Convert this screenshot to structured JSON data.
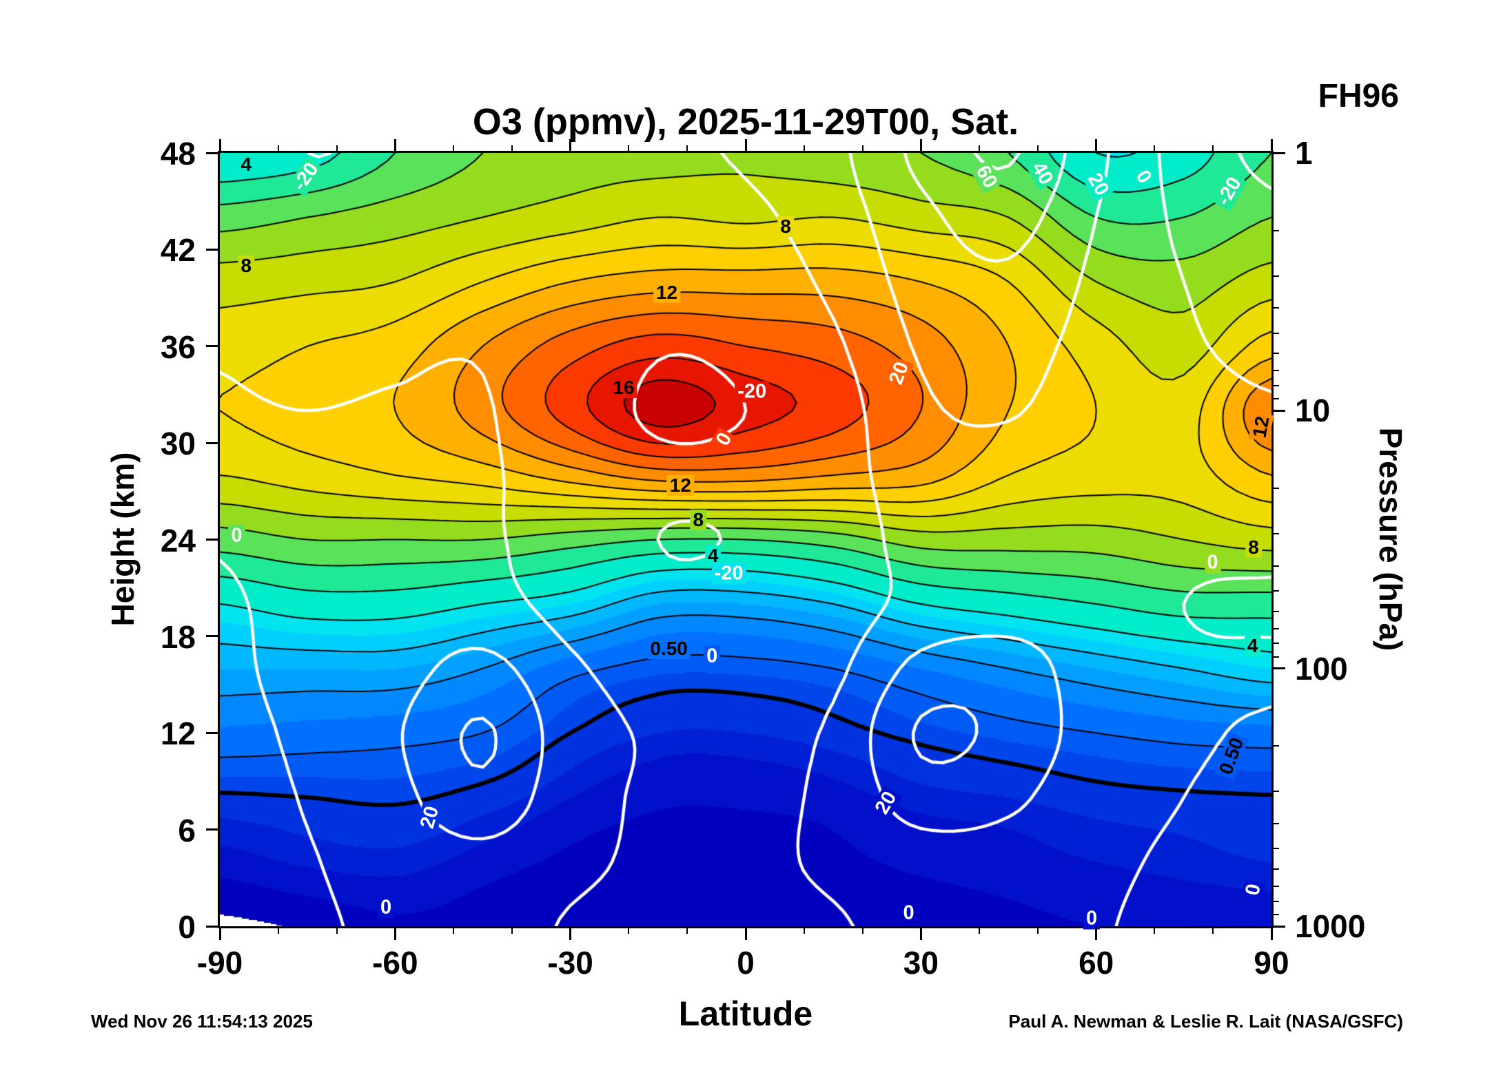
{
  "header": {
    "fh_label": "FH96"
  },
  "footer": {
    "timestamp": "Wed Nov 26 11:54:13 2025",
    "credit": "Paul A. Newman & Leslie R. Lait (NASA/GSFC)"
  },
  "chart_data": {
    "type": "heatmap",
    "title": "O3 (ppmv), 2025-11-29T00, Sat.",
    "xlabel": "Latitude",
    "ylabel_left": "Height (km)",
    "ylabel_right": "Pressure (hPa)",
    "x_range": [
      -90,
      90
    ],
    "y_range_km": [
      0,
      48
    ],
    "x_ticks_major": [
      -90,
      -60,
      -30,
      0,
      30,
      60,
      90
    ],
    "x_ticks_minor_step": 10,
    "y_ticks_left_km": [
      0,
      6,
      12,
      18,
      24,
      30,
      36,
      42,
      48
    ],
    "y_ticks_right_hpa": [
      1,
      10,
      100,
      1000
    ],
    "lat_points": [
      -90,
      -75,
      -60,
      -45,
      -30,
      -15,
      0,
      15,
      30,
      45,
      60,
      75,
      90
    ],
    "height_points_km": [
      48,
      44,
      40,
      36,
      32,
      28,
      24,
      20,
      16,
      12,
      8,
      4,
      0
    ],
    "o3_grid_ppmv": [
      [
        4,
        4.5,
        6,
        7,
        7.5,
        7.6,
        7.8,
        7.4,
        7,
        6,
        4.0,
        4.5,
        6
      ],
      [
        6.5,
        7,
        7.5,
        8,
        8.5,
        9,
        8.8,
        9,
        8.5,
        8,
        6,
        6,
        7
      ],
      [
        8.5,
        8.7,
        9,
        10,
        11,
        11.5,
        11.5,
        11.5,
        11,
        10,
        8,
        7.5,
        8.5
      ],
      [
        9.5,
        10,
        10.5,
        12,
        13.5,
        14.5,
        14,
        13.5,
        12.5,
        11,
        9.5,
        8.5,
        10.5
      ],
      [
        10,
        10.5,
        11,
        12.5,
        14.5,
        16.5,
        15.5,
        14.5,
        13,
        11,
        10,
        9.5,
        13
      ],
      [
        9,
        9.5,
        10,
        10.5,
        11.5,
        12.5,
        12.5,
        12,
        11.5,
        10,
        9.5,
        9.5,
        11
      ],
      [
        6.5,
        7,
        7,
        7,
        6.5,
        6,
        6,
        6.5,
        7.5,
        7.5,
        7.5,
        8,
        8.5
      ],
      [
        4,
        4.5,
        4.5,
        4,
        3.5,
        2.5,
        2.5,
        3,
        4,
        4.5,
        5,
        5.5,
        5.5
      ],
      [
        2.5,
        2.5,
        2.5,
        2,
        1.2,
        0.8,
        0.8,
        1,
        1.5,
        2,
        2.5,
        3,
        3.5
      ],
      [
        1.4,
        1.3,
        1.2,
        1,
        0.5,
        0.3,
        0.3,
        0.4,
        0.6,
        0.8,
        1,
        1.2,
        1.3
      ],
      [
        0.45,
        0.5,
        0.55,
        0.4,
        0.2,
        0.12,
        0.12,
        0.15,
        0.25,
        0.3,
        0.4,
        0.45,
        0.48
      ],
      [
        0.15,
        0.22,
        0.25,
        0.15,
        0.08,
        0.06,
        0.06,
        0.08,
        0.12,
        0.15,
        0.2,
        0.25,
        0.3
      ],
      [
        0.005,
        0.03,
        0.08,
        0.06,
        0.05,
        0.04,
        0.04,
        0.05,
        0.06,
        0.08,
        0.1,
        0.1,
        0.1
      ]
    ],
    "fill_boundaries_ppmv": [
      0.02,
      0.1,
      0.2,
      0.3,
      0.5,
      0.7,
      1,
      1.5,
      2,
      2.5,
      3,
      3.5,
      4,
      5,
      6,
      7,
      8,
      9,
      10,
      11,
      12,
      13,
      14,
      15,
      16
    ],
    "fill_colors": [
      "#ffffff",
      "#0101be",
      "#0110ca",
      "#0120d6",
      "#0132e0",
      "#0146ea",
      "#015af4",
      "#0170fe",
      "#0188ff",
      "#01a0ff",
      "#01b8ff",
      "#01d0ff",
      "#01e4ef",
      "#01ecc8",
      "#1fe897",
      "#59e25a",
      "#95dc1f",
      "#c7dc01",
      "#ecdc01",
      "#ffd001",
      "#ffb001",
      "#ff8c01",
      "#ff6401",
      "#fa3a01",
      "#e61601",
      "#c80101"
    ],
    "o3_contour_levels": [
      1,
      2,
      3,
      4,
      5,
      6,
      7,
      8,
      9,
      10,
      11,
      12,
      13,
      14,
      15,
      16
    ],
    "o3_contour_levels_bold": [
      0.5
    ],
    "overlay_contour_levels": [
      -20,
      0,
      20,
      40,
      60
    ],
    "overlay_dashed_below": 0,
    "overlay_color": "#ffffff",
    "overlay_grid": [
      [
        -10,
        -20,
        -16,
        -10,
        -6,
        -3,
        2,
        15,
        45,
        62,
        25,
        -8,
        -24
      ],
      [
        -8,
        -15,
        -12,
        -7,
        -5,
        -8,
        -4,
        10,
        35,
        48,
        20,
        -4,
        -16
      ],
      [
        -5,
        -9,
        -7,
        -4,
        -5,
        -13,
        -10,
        4,
        28,
        36,
        16,
        0,
        -8
      ],
      [
        -1,
        -4,
        -2,
        -1,
        -9,
        -19,
        -16,
        -3,
        22,
        27,
        13,
        2,
        -3
      ],
      [
        1,
        0,
        1,
        1,
        -11,
        -22,
        -20,
        -9,
        17,
        21,
        11,
        4,
        1
      ],
      [
        2,
        2,
        3,
        2,
        -9,
        -17,
        -16,
        -9,
        12,
        15,
        9,
        5,
        3
      ],
      [
        0.5,
        3,
        5,
        3,
        -11,
        -20,
        -19,
        -12,
        8,
        11,
        8,
        3,
        2
      ],
      [
        -1,
        3,
        7,
        7,
        -7,
        -16,
        -15,
        -10,
        6,
        10,
        7,
        0,
        -1
      ],
      [
        -2,
        4,
        12,
        26,
        3,
        -7,
        -8,
        -4,
        26,
        30,
        9,
        2,
        1
      ],
      [
        -3,
        3,
        18,
        42,
        9,
        -2,
        -4,
        3,
        42,
        34,
        11,
        2,
        -1
      ],
      [
        -4,
        1,
        14,
        34,
        7,
        -2,
        -3,
        4,
        30,
        24,
        7,
        0,
        -3
      ],
      [
        -5,
        -1,
        7,
        13,
        3,
        -2,
        -2,
        2,
        10,
        11,
        3,
        -2,
        -5
      ],
      [
        -5,
        -2,
        3,
        6,
        -1,
        -3,
        -3,
        -1,
        4,
        6,
        1,
        -3,
        -6
      ]
    ],
    "contour_labels": {
      "black": [
        {
          "text": "4",
          "fx": 0.025,
          "fy": 0.015,
          "rot": 0
        },
        {
          "text": "8",
          "fx": 0.538,
          "fy": 0.095,
          "rot": 0
        },
        {
          "text": "8",
          "fx": 0.025,
          "fy": 0.146,
          "rot": 0
        },
        {
          "text": "12",
          "fx": 0.425,
          "fy": 0.181,
          "rot": 0
        },
        {
          "text": "16",
          "fx": 0.384,
          "fy": 0.304,
          "rot": 0
        },
        {
          "text": "12",
          "fx": 0.99,
          "fy": 0.354,
          "rot": -80
        },
        {
          "text": "12",
          "fx": 0.438,
          "fy": 0.43,
          "rot": 0
        },
        {
          "text": "8",
          "fx": 0.455,
          "fy": 0.475,
          "rot": 0
        },
        {
          "text": "4",
          "fx": 0.469,
          "fy": 0.521,
          "rot": 0
        },
        {
          "text": "8",
          "fx": 0.983,
          "fy": 0.51,
          "rot": 0
        },
        {
          "text": "0.50",
          "fx": 0.427,
          "fy": 0.641,
          "rot": 0
        },
        {
          "text": "4",
          "fx": 0.982,
          "fy": 0.638,
          "rot": 0
        },
        {
          "text": "0.50",
          "fx": 0.962,
          "fy": 0.78,
          "rot": -70
        }
      ],
      "white": [
        {
          "text": "-20",
          "fx": 0.082,
          "fy": 0.031,
          "rot": -55
        },
        {
          "text": "60",
          "fx": 0.729,
          "fy": 0.031,
          "rot": 60
        },
        {
          "text": "40",
          "fx": 0.782,
          "fy": 0.027,
          "rot": 60
        },
        {
          "text": "20",
          "fx": 0.835,
          "fy": 0.041,
          "rot": 60
        },
        {
          "text": "0",
          "fx": 0.878,
          "fy": 0.031,
          "rot": 60
        },
        {
          "text": "-20",
          "fx": 0.96,
          "fy": 0.05,
          "rot": -60
        },
        {
          "text": "-20",
          "fx": 0.506,
          "fy": 0.309,
          "rot": 0
        },
        {
          "text": "20",
          "fx": 0.646,
          "fy": 0.285,
          "rot": -70
        },
        {
          "text": "0",
          "fx": 0.48,
          "fy": 0.37,
          "rot": -60
        },
        {
          "text": "0",
          "fx": 0.016,
          "fy": 0.495,
          "rot": 0
        },
        {
          "text": "-20",
          "fx": 0.484,
          "fy": 0.544,
          "rot": 0
        },
        {
          "text": "0",
          "fx": 0.944,
          "fy": 0.53,
          "rot": 0
        },
        {
          "text": "0",
          "fx": 0.468,
          "fy": 0.651,
          "rot": 0
        },
        {
          "text": "20",
          "fx": 0.2,
          "fy": 0.859,
          "rot": -75
        },
        {
          "text": "20",
          "fx": 0.634,
          "fy": 0.841,
          "rot": -60
        },
        {
          "text": "0",
          "fx": 0.158,
          "fy": 0.976,
          "rot": 0
        },
        {
          "text": "0",
          "fx": 0.655,
          "fy": 0.983,
          "rot": 0
        },
        {
          "text": "0",
          "fx": 0.829,
          "fy": 0.99,
          "rot": 0
        },
        {
          "text": "0",
          "fx": 0.983,
          "fy": 0.953,
          "rot": -80
        }
      ]
    }
  }
}
